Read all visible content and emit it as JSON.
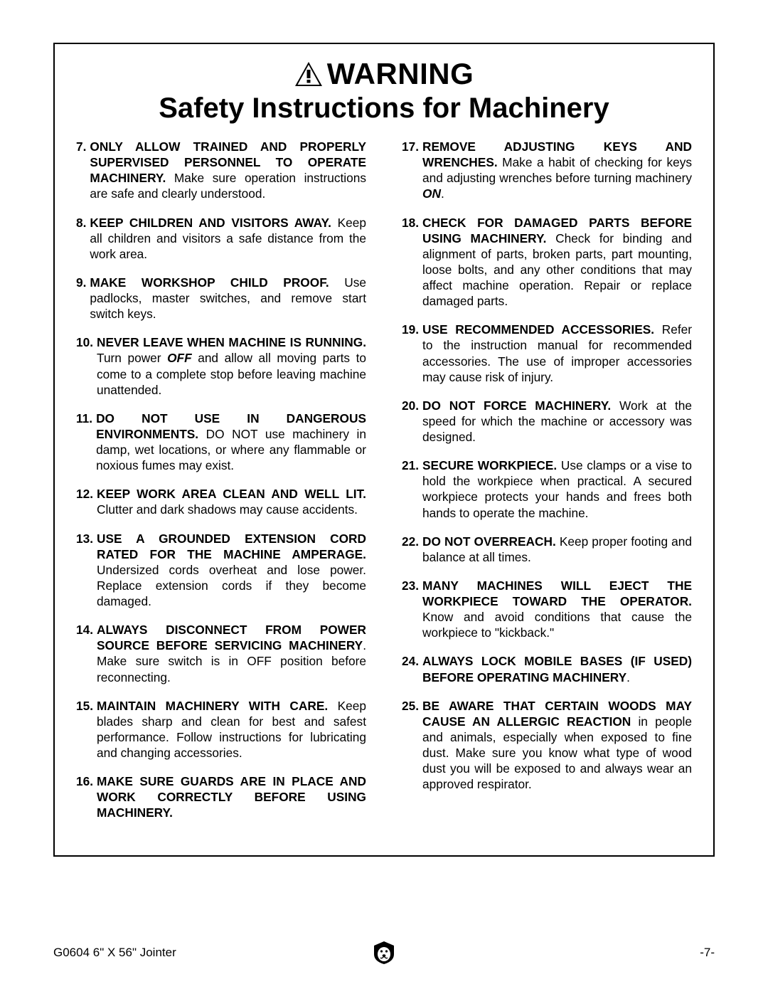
{
  "header": {
    "warning_label": "WARNING",
    "subtitle": "Safety Instructions for Machinery"
  },
  "left_items": [
    {
      "n": "7.",
      "bold": "ONLY ALLOW TRAINED AND PROP­ERLY SUPERVISED PERSONNEL TO OPERATE MACHINERY.",
      "rest": " Make sure operation instructions are safe and clearly understood."
    },
    {
      "n": "8.",
      "bold": "KEEP CHILDREN AND VISITORS AWAY.",
      "rest": " Keep all children and visitors a safe distance from the work area."
    },
    {
      "n": "9.",
      "bold": "MAKE WORKSHOP CHILD PROOF.",
      "rest": " Use padlocks, master switches, and remove start switch keys."
    },
    {
      "n": "10.",
      "bold": "NEVER LEAVE WHEN MACHINE IS RUNNING.",
      "rest": " Turn power ",
      "ital": "OFF",
      "rest2": " and allow all moving parts to come to a complete stop before leaving machine unattended."
    },
    {
      "n": "11.",
      "bold": "DO NOT USE IN DANGEROUS ENVIRONMENTS.",
      "rest": " DO NOT use machinery in damp, wet locations, or where any flammable or noxious fumes may exist."
    },
    {
      "n": "12.",
      "bold": "KEEP WORK AREA CLEAN AND WELL LIT.",
      "rest": " Clutter and dark shadows may cause accidents."
    },
    {
      "n": "13.",
      "bold": "USE A GROUNDED EXTENSION CORD RATED FOR THE MACHINE AMPERAGE.",
      "rest": " Undersized cords overheat and lose power. Replace extension cords if they become damaged."
    },
    {
      "n": "14.",
      "bold": "ALWAYS DISCONNECT FROM POWER SOURCE BEFORE SERVICING MACHINERY",
      "rest": ". Make sure switch is in OFF position before reconnecting."
    },
    {
      "n": "15.",
      "bold": "MAINTAIN MACHINERY WITH CARE.",
      "rest": " Keep blades sharp and clean for best and safest performance. Follow instructions for lubricating and changing accessories."
    },
    {
      "n": "16.",
      "bold": "MAKE SURE GUARDS ARE IN PLACE AND WORK CORRECTLY BEFORE USING MACHINERY.",
      "rest": ""
    }
  ],
  "right_items": [
    {
      "n": "17.",
      "bold": "REMOVE ADJUSTING KEYS AND WRENCHES.",
      "rest": " Make a habit of checking for keys and adjusting wrenches before turning machinery ",
      "ital": "ON",
      "rest2": "."
    },
    {
      "n": "18.",
      "bold": "CHECK FOR DAMAGED PARTS BEFORE USING MACHINERY.",
      "rest": " Check for binding and alignment of parts, broken parts, part mounting, loose bolts, and any other conditions that may affect machine operation. Repair or replace damaged parts."
    },
    {
      "n": "19.",
      "bold": "USE RECOMMENDED ACCESSORIES.",
      "rest": " Refer to the instruction manual for recommended accessories. The use of improper accessories may cause risk of injury."
    },
    {
      "n": "20.",
      "bold": "DO NOT FORCE MACHINERY.",
      "rest": " Work at the speed for which the machine or accessory was designed."
    },
    {
      "n": "21.",
      "bold": "SECURE WORKPIECE.",
      "rest": " Use clamps or a vise to hold the workpiece when practical. A secured workpiece protects your hands and frees both hands to operate the machine."
    },
    {
      "n": "22.",
      "bold": "DO NOT OVERREACH.",
      "rest": " Keep proper footing and balance at all times."
    },
    {
      "n": "23.",
      "bold": "MANY MACHINES WILL EJECT THE WORKPIECE TOWARD THE OPERATOR.",
      "rest": " Know and avoid conditions that cause the workpiece to \"kickback.\""
    },
    {
      "n": "24.",
      "bold": "ALWAYS LOCK MOBILE BASES (IF USED) BEFORE OPERATING MACHINERY",
      "rest": "."
    },
    {
      "n": "25.",
      "bold": "BE AWARE THAT CERTAIN WOODS MAY CAUSE AN ALLERGIC REACTION",
      "rest": " in people and animals, especially when exposed to fine dust. Make sure you know what type of wood dust you will be exposed to and always wear an approved respirator."
    }
  ],
  "footer": {
    "left": "G0604 6\" X 56\" Jointer",
    "right": "-7-"
  }
}
